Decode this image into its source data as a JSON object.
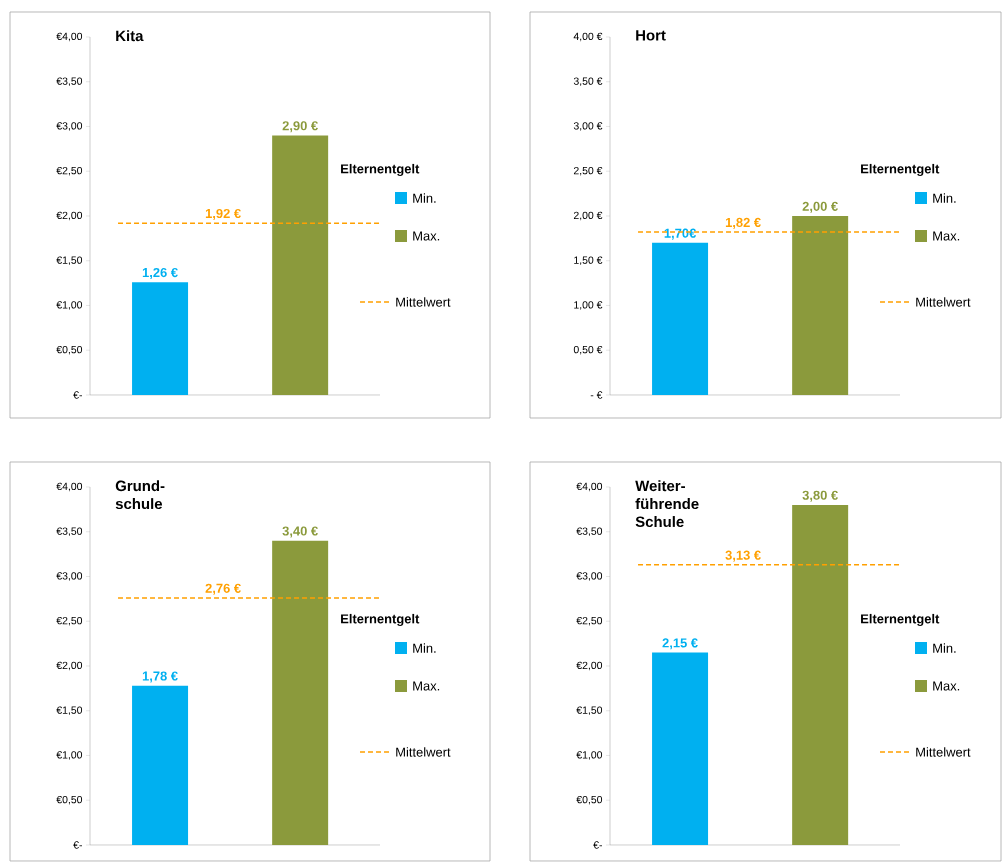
{
  "chart_data": [
    {
      "type": "bar",
      "title": "Kita",
      "categories": [
        null,
        null
      ],
      "legend": "right",
      "legend_title": "Elternentgelt",
      "grid": false,
      "series": [
        {
          "name": "Min.",
          "color": "#00b0f0",
          "values": [
            1.26,
            null
          ],
          "value_labels": [
            "1,26 €",
            null
          ]
        },
        {
          "name": "Max.",
          "color": "#8b9a3c",
          "values": [
            null,
            2.9
          ],
          "value_labels": [
            null,
            "2,90 €"
          ]
        }
      ],
      "ylim": [
        0,
        4
      ],
      "yticks": [
        {
          "value": 0,
          "label": "€-"
        },
        {
          "value": 0.5,
          "label": "€0,50"
        },
        {
          "value": 1,
          "label": "€1,00"
        },
        {
          "value": 1.5,
          "label": "€1,50"
        },
        {
          "value": 2,
          "label": "€2,00"
        },
        {
          "value": 2.5,
          "label": "€2,50"
        },
        {
          "value": 3,
          "label": "€3,00"
        },
        {
          "value": 3.5,
          "label": "€3,50"
        },
        {
          "value": 4,
          "label": "€4,00"
        }
      ],
      "ref_lines": [
        {
          "axis": "y",
          "value": 1.92,
          "label": "Mittelwert",
          "color": "#ffa000",
          "line_style": "dashed"
        }
      ],
      "annotations": [
        {
          "text": "1,92 €",
          "y": 1.92
        }
      ]
    },
    {
      "type": "bar",
      "title": "Hort",
      "categories": [
        null,
        null
      ],
      "legend": "right",
      "legend_title": "Elternentgelt",
      "grid": false,
      "series": [
        {
          "name": "Min.",
          "color": "#00b0f0",
          "values": [
            1.7,
            null
          ],
          "value_labels": [
            "1,70€",
            null
          ]
        },
        {
          "name": "Max.",
          "color": "#8b9a3c",
          "values": [
            null,
            2.0
          ],
          "value_labels": [
            null,
            "2,00 €"
          ]
        }
      ],
      "ylim": [
        0,
        4
      ],
      "yticks": [
        {
          "value": 0,
          "label": "-  €"
        },
        {
          "value": 0.5,
          "label": "0,50 €"
        },
        {
          "value": 1,
          "label": "1,00 €"
        },
        {
          "value": 1.5,
          "label": "1,50 €"
        },
        {
          "value": 2,
          "label": "2,00 €"
        },
        {
          "value": 2.5,
          "label": "2,50 €"
        },
        {
          "value": 3,
          "label": "3,00 €"
        },
        {
          "value": 3.5,
          "label": "3,50 €"
        },
        {
          "value": 4,
          "label": "4,00 €"
        }
      ],
      "ref_lines": [
        {
          "axis": "y",
          "value": 1.82,
          "label": "Mittelwert",
          "color": "#ffa000",
          "line_style": "dashed"
        }
      ],
      "annotations": [
        {
          "text": "1,82 €",
          "y": 1.82
        }
      ]
    },
    {
      "type": "bar",
      "title": "Grund-schule",
      "categories": [
        null,
        null
      ],
      "legend": "right",
      "legend_title": "Elternentgelt",
      "grid": false,
      "series": [
        {
          "name": "Min.",
          "color": "#00b0f0",
          "values": [
            1.78,
            null
          ],
          "value_labels": [
            "1,78 €",
            null
          ]
        },
        {
          "name": "Max.",
          "color": "#8b9a3c",
          "values": [
            null,
            3.4
          ],
          "value_labels": [
            null,
            "3,40 €"
          ]
        }
      ],
      "ylim": [
        0,
        4
      ],
      "yticks": [
        {
          "value": 0,
          "label": "€-"
        },
        {
          "value": 0.5,
          "label": "€0,50"
        },
        {
          "value": 1,
          "label": "€1,00"
        },
        {
          "value": 1.5,
          "label": "€1,50"
        },
        {
          "value": 2,
          "label": "€2,00"
        },
        {
          "value": 2.5,
          "label": "€2,50"
        },
        {
          "value": 3,
          "label": "€3,00"
        },
        {
          "value": 3.5,
          "label": "€3,50"
        },
        {
          "value": 4,
          "label": "€4,00"
        }
      ],
      "ref_lines": [
        {
          "axis": "y",
          "value": 2.76,
          "label": "Mittelwert",
          "color": "#ffa000",
          "line_style": "dashed"
        }
      ],
      "annotations": [
        {
          "text": "2,76 €",
          "y": 2.76
        }
      ]
    },
    {
      "type": "bar",
      "title": "Weiter-führende Schule",
      "categories": [
        null,
        null
      ],
      "legend": "right",
      "legend_title": "Elternentgelt",
      "grid": false,
      "series": [
        {
          "name": "Min.",
          "color": "#00b0f0",
          "values": [
            2.15,
            null
          ],
          "value_labels": [
            "2,15 €",
            null
          ]
        },
        {
          "name": "Max.",
          "color": "#8b9a3c",
          "values": [
            null,
            3.8
          ],
          "value_labels": [
            null,
            "3,80 €"
          ]
        }
      ],
      "ylim": [
        0,
        4
      ],
      "yticks": [
        {
          "value": 0,
          "label": "€-"
        },
        {
          "value": 0.5,
          "label": "€0,50"
        },
        {
          "value": 1,
          "label": "€1,00"
        },
        {
          "value": 1.5,
          "label": "€1,50"
        },
        {
          "value": 2,
          "label": "€2,00"
        },
        {
          "value": 2.5,
          "label": "€2,50"
        },
        {
          "value": 3,
          "label": "€3,00"
        },
        {
          "value": 3.5,
          "label": "€3,50"
        },
        {
          "value": 4,
          "label": "€4,00"
        }
      ],
      "ref_lines": [
        {
          "axis": "y",
          "value": 3.13,
          "label": "Mittelwert",
          "color": "#ffa000",
          "line_style": "dashed"
        }
      ],
      "annotations": [
        {
          "text": "3,13 €",
          "y": 3.13
        }
      ]
    }
  ]
}
